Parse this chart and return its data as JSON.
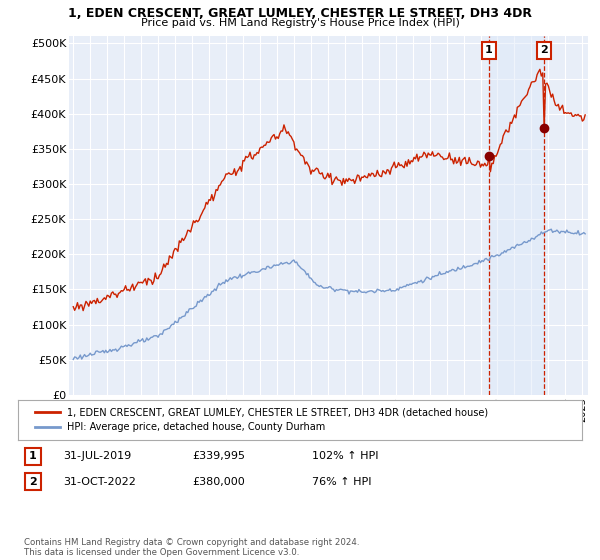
{
  "title": "1, EDEN CRESCENT, GREAT LUMLEY, CHESTER LE STREET, DH3 4DR",
  "subtitle": "Price paid vs. HM Land Registry's House Price Index (HPI)",
  "background_color": "#ffffff",
  "plot_bg_color": "#e8eef8",
  "grid_color": "#ffffff",
  "red_line_color": "#cc2200",
  "blue_line_color": "#7799cc",
  "dashed_line_color": "#cc2200",
  "shade_color": "#dce8f8",
  "legend_line1": "1, EDEN CRESCENT, GREAT LUMLEY, CHESTER LE STREET, DH3 4DR (detached house)",
  "legend_line2": "HPI: Average price, detached house, County Durham",
  "footer": "Contains HM Land Registry data © Crown copyright and database right 2024.\nThis data is licensed under the Open Government Licence v3.0.",
  "yticks": [
    0,
    50000,
    100000,
    150000,
    200000,
    250000,
    300000,
    350000,
    400000,
    450000,
    500000
  ],
  "ytick_labels": [
    "£0",
    "£50K",
    "£100K",
    "£150K",
    "£200K",
    "£250K",
    "£300K",
    "£350K",
    "£400K",
    "£450K",
    "£500K"
  ],
  "start_year": 1995,
  "end_year": 2025,
  "m1_year": 2019,
  "m1_month": 6,
  "m1_value": 339995,
  "m2_year": 2022,
  "m2_month": 9,
  "m2_value": 380000,
  "ann1_date": "31-JUL-2019",
  "ann1_price": "£339,995",
  "ann1_hpi": "102% ↑ HPI",
  "ann2_date": "31-OCT-2022",
  "ann2_price": "£380,000",
  "ann2_hpi": "76% ↑ HPI"
}
